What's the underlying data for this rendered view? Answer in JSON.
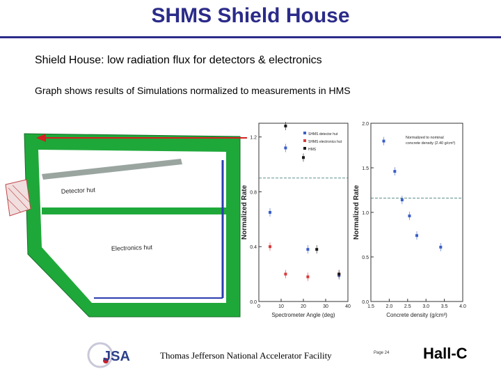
{
  "slide": {
    "title": "SHMS Shield House",
    "line1": "Shield House: low radiation flux for detectors & electronics",
    "line2": "Graph shows results of Simulations normalized to measurements in HMS"
  },
  "diagram": {
    "detector_label": "Detector hut",
    "electronics_label": "Electronics hut"
  },
  "footer": {
    "lab": "Thomas Jefferson National Accelerator Facility",
    "page": "Page 24",
    "group": "Hall-C",
    "logo_text": "JSA"
  },
  "colors": {
    "title": "#2b2b8a",
    "shield_green": "#1fa83a",
    "blue_series": "#3a5fc8",
    "red_series": "#d83a3a",
    "black_series": "#1a1a1a",
    "reference_line": "#2a6a6a"
  },
  "chart_data": [
    {
      "type": "scatter",
      "title": "",
      "xlabel": "Spectrometer Angle (deg)",
      "ylabel": "Normalized Rate",
      "xlim": [
        0,
        40
      ],
      "ylim": [
        0,
        1.3
      ],
      "xticks": [
        "0",
        "10",
        "20",
        "30",
        "40"
      ],
      "yticks": [
        "0.0",
        "0.4",
        "0.8",
        "1.2"
      ],
      "legend": [
        "SHMS detector hut",
        "SHMS electronics hut",
        "HMS"
      ],
      "series": [
        {
          "name": "SHMS detector hut",
          "color": "blue",
          "points": [
            [
              5,
              0.65
            ],
            [
              12,
              1.12
            ],
            [
              22,
              0.38
            ],
            [
              36,
              0.19
            ]
          ]
        },
        {
          "name": "SHMS electronics hut",
          "color": "red",
          "points": [
            [
              5,
              0.4
            ],
            [
              12,
              0.2
            ],
            [
              22,
              0.18
            ],
            [
              36,
              0.2
            ]
          ]
        },
        {
          "name": "HMS",
          "color": "black",
          "points": [
            [
              12,
              1.28
            ],
            [
              20,
              1.05
            ],
            [
              26,
              0.38
            ],
            [
              36,
              0.2
            ]
          ]
        }
      ],
      "reference_line": 0.9
    },
    {
      "type": "scatter",
      "title": "",
      "xlabel": "Concrete density (g/cm³)",
      "ylabel": "Normalized Rate",
      "xlim": [
        1.5,
        4.0
      ],
      "ylim": [
        0.0,
        2.0
      ],
      "xticks": [
        "1.5",
        "2.0",
        "2.5",
        "3.0",
        "3.5",
        "4.0"
      ],
      "yticks": [
        "0.0",
        "0.5",
        "1.0",
        "1.5",
        "2.0"
      ],
      "annotation": "Normalized to nominal concrete density (2.40 g/cm³)",
      "series": [
        {
          "name": "",
          "color": "blue",
          "points": [
            [
              1.85,
              1.8
            ],
            [
              2.15,
              1.46
            ],
            [
              2.35,
              1.14
            ],
            [
              2.55,
              0.96
            ],
            [
              2.75,
              0.74
            ],
            [
              3.4,
              0.61
            ]
          ]
        }
      ],
      "reference_line": 1.16
    }
  ]
}
